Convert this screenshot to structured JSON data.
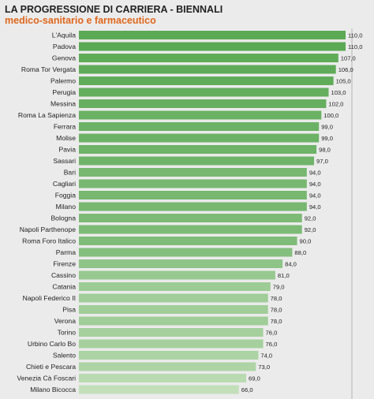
{
  "title": "LA PROGRESSIONE DI CARRIERA - BIENNALI",
  "subtitle": "medico-sanitario e farmaceutico",
  "colors": {
    "bar_dark": "#5ba955",
    "bar_light": "#c3dfba",
    "background": "#ebebeb",
    "subtitle": "#e0671c"
  },
  "chart_data": {
    "type": "bar",
    "orientation": "horizontal",
    "title": "LA PROGRESSIONE DI CARRIERA - BIENNALI",
    "subtitle": "medico-sanitario e farmaceutico",
    "categories": [
      "L'Aquila",
      "Padova",
      "Genova",
      "Roma Tor Vergata",
      "Palermo",
      "Perugia",
      "Messina",
      "Roma La Sapienza",
      "Ferrara",
      "Molise",
      "Pavia",
      "Sassari",
      "Bari",
      "Cagliari",
      "Foggia",
      "Milano",
      "Bologna",
      "Napoli Parthenope",
      "Roma Foro Italico",
      "Parma",
      "Firenze",
      "Cassino",
      "Catania",
      "Napoli Federico II",
      "Pisa",
      "Verona",
      "Torino",
      "Urbino Carlo Bo",
      "Salento",
      "Chieti e Pescara",
      "Venezia Cà Foscari",
      "Milano Bicocca"
    ],
    "values": [
      110,
      110,
      107,
      106,
      105,
      103,
      102,
      100,
      99,
      99,
      98,
      97,
      94,
      94,
      94,
      94,
      92,
      92,
      90,
      88,
      84,
      81,
      79,
      78,
      78,
      78,
      76,
      76,
      74,
      73,
      69,
      66
    ],
    "value_labels": [
      "110,0",
      "110,0",
      "107,0",
      "106,0",
      "105,0",
      "103,0",
      "102,0",
      "100,0",
      "99,0",
      "99,0",
      "98,0",
      "97,0",
      "94,0",
      "94,0",
      "94,0",
      "94,0",
      "92,0",
      "92,0",
      "90,0",
      "88,0",
      "84,0",
      "81,0",
      "79,0",
      "78,0",
      "78,0",
      "78,0",
      "76,0",
      "76,0",
      "74,0",
      "73,0",
      "69,0",
      "66,0"
    ],
    "xlim": [
      0,
      110
    ],
    "grid": false,
    "legend": "none"
  }
}
